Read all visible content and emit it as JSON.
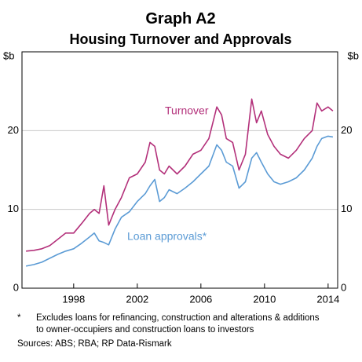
{
  "chart_data": {
    "type": "line",
    "title": "Graph A2",
    "subtitle": "Housing Turnover and Approvals",
    "y_unit": "$b",
    "x": [
      1995.0,
      1995.5,
      1996.0,
      1996.5,
      1997.0,
      1997.5,
      1998.0,
      1998.5,
      1999.0,
      1999.3,
      1999.6,
      1999.9,
      2000.2,
      2000.6,
      2001.0,
      2001.5,
      2002.0,
      2002.5,
      2002.8,
      2003.1,
      2003.4,
      2003.7,
      2004.0,
      2004.5,
      2005.0,
      2005.5,
      2006.0,
      2006.5,
      2007.0,
      2007.3,
      2007.6,
      2008.0,
      2008.4,
      2008.8,
      2009.2,
      2009.5,
      2009.8,
      2010.2,
      2010.6,
      2011.0,
      2011.5,
      2012.0,
      2012.5,
      2013.0,
      2013.3,
      2013.6,
      2014.0,
      2014.3
    ],
    "series": [
      {
        "name": "Turnover",
        "color": "#b3307a",
        "values": [
          4.7,
          4.8,
          5.0,
          5.4,
          6.2,
          7.0,
          7.0,
          8.2,
          9.5,
          10.0,
          9.5,
          13.0,
          8.0,
          10.0,
          11.5,
          14.0,
          14.5,
          16.0,
          18.5,
          18.0,
          15.0,
          14.5,
          15.5,
          14.5,
          15.5,
          17.0,
          17.5,
          19.0,
          23.0,
          22.0,
          19.0,
          18.5,
          15.0,
          17.0,
          24.0,
          21.0,
          22.5,
          19.5,
          18.0,
          17.0,
          16.5,
          17.5,
          19.0,
          20.0,
          23.5,
          22.5,
          23.0,
          22.5
        ]
      },
      {
        "name": "Loan approvals*",
        "color": "#5b9bd5",
        "values": [
          2.8,
          3.0,
          3.3,
          3.8,
          4.3,
          4.7,
          5.0,
          5.7,
          6.5,
          7.0,
          6.0,
          5.8,
          5.5,
          7.5,
          9.0,
          9.7,
          11.0,
          12.0,
          13.0,
          13.8,
          11.0,
          11.5,
          12.5,
          12.0,
          12.7,
          13.5,
          14.5,
          15.5,
          18.2,
          17.5,
          16.0,
          15.5,
          12.7,
          13.5,
          16.5,
          17.2,
          16.0,
          14.5,
          13.5,
          13.2,
          13.5,
          14.0,
          15.0,
          16.5,
          18.0,
          19.0,
          19.3,
          19.2
        ]
      }
    ],
    "xlim": [
      1994.75,
      2014.6
    ],
    "xticks": [
      1998,
      2002,
      2006,
      2010,
      2014
    ],
    "ylim": [
      0,
      30
    ],
    "yticks": [
      0,
      10,
      20
    ],
    "grid": true,
    "notes": [
      "*",
      "Excludes loans for refinancing, construction and alterations & additions",
      "to owner-occupiers and construction loans to investors",
      "Sources:   ABS; RBA; RP Data-Rismark"
    ]
  }
}
